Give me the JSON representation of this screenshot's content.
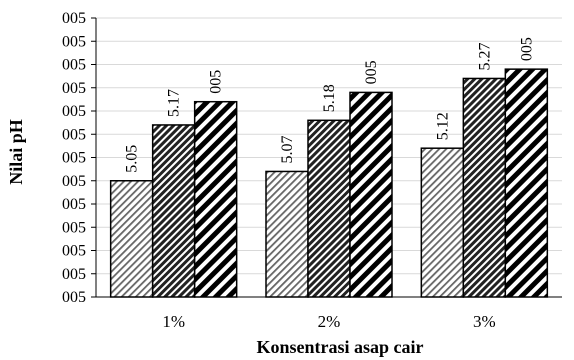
{
  "chart_data": {
    "type": "bar",
    "title": "",
    "xlabel": "Konsentrasi asap cair",
    "ylabel": "Nilai pH",
    "categories": [
      "1%",
      "2%",
      "3%"
    ],
    "ylim": [
      4.8,
      5.4
    ],
    "y_tick_values": [
      4.8,
      4.85,
      4.9,
      4.95,
      5.0,
      5.05,
      5.1,
      5.15,
      5.2,
      5.25,
      5.3,
      5.35,
      5.4
    ],
    "y_tick_label": "005",
    "gridlines": true,
    "series": [
      {
        "values": [
          5.05,
          5.07,
          5.12
        ],
        "labels": [
          "5.05",
          "5.07",
          "5.12"
        ],
        "pattern": "thin-diagonal-stripes"
      },
      {
        "values": [
          5.17,
          5.18,
          5.27
        ],
        "labels": [
          "5.17",
          "5.18",
          "5.27"
        ],
        "pattern": "medium-diagonal-stripes"
      },
      {
        "values": [
          5.22,
          5.24,
          5.29
        ],
        "labels": [
          "005",
          "005",
          "005"
        ],
        "pattern": "thick-diagonal-stripes"
      }
    ]
  }
}
